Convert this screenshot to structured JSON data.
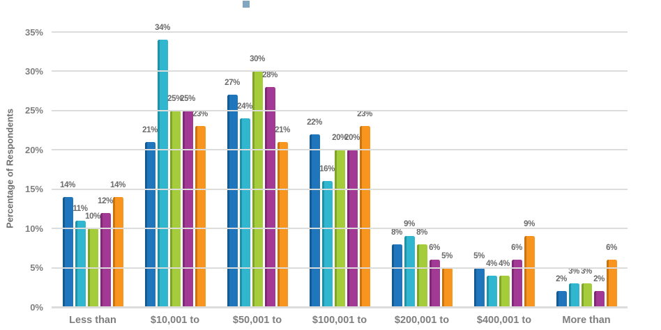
{
  "legend": {
    "marker_color": "#82A5C0",
    "position": "top"
  },
  "colors": {
    "background": "#FFFFFF",
    "gridline": "#DCDCDC",
    "axis_text": "#7E7E7E",
    "data_label_text": "#6B6B6B"
  },
  "chart_data": {
    "type": "bar",
    "title": "",
    "xlabel": "",
    "ylabel": "Percentage of Respondents",
    "ylim": [
      0,
      35
    ],
    "y_tick_step": 5,
    "y_ticks": [
      "0%",
      "5%",
      "10%",
      "15%",
      "20%",
      "25%",
      "30%",
      "35%"
    ],
    "grid": true,
    "data_labels_format": "percent",
    "legend_position": "top",
    "categories": [
      "Less than",
      "$10,001 to",
      "$50,001 to",
      "$100,001 to",
      "$200,001 to",
      "$400,001 to",
      "More than"
    ],
    "series": [
      {
        "name": "blue",
        "color": "#2076BD",
        "edge_color": "#155A91",
        "values": [
          14,
          21,
          27,
          22,
          8,
          5,
          2
        ]
      },
      {
        "name": "cyan",
        "color": "#30B6CF",
        "edge_color": "#2191A6",
        "values": [
          11,
          34,
          24,
          16,
          9,
          4,
          3
        ]
      },
      {
        "name": "green",
        "color": "#A5CC3A",
        "edge_color": "#81A22B",
        "values": [
          10,
          25,
          30,
          20,
          8,
          4,
          3
        ]
      },
      {
        "name": "purple",
        "color": "#A23A95",
        "edge_color": "#7C2B72",
        "values": [
          12,
          25,
          28,
          20,
          6,
          6,
          2
        ]
      },
      {
        "name": "orange",
        "color": "#F8951F",
        "edge_color": "#C97413",
        "values": [
          14,
          23,
          21,
          23,
          5,
          9,
          6
        ]
      }
    ]
  }
}
